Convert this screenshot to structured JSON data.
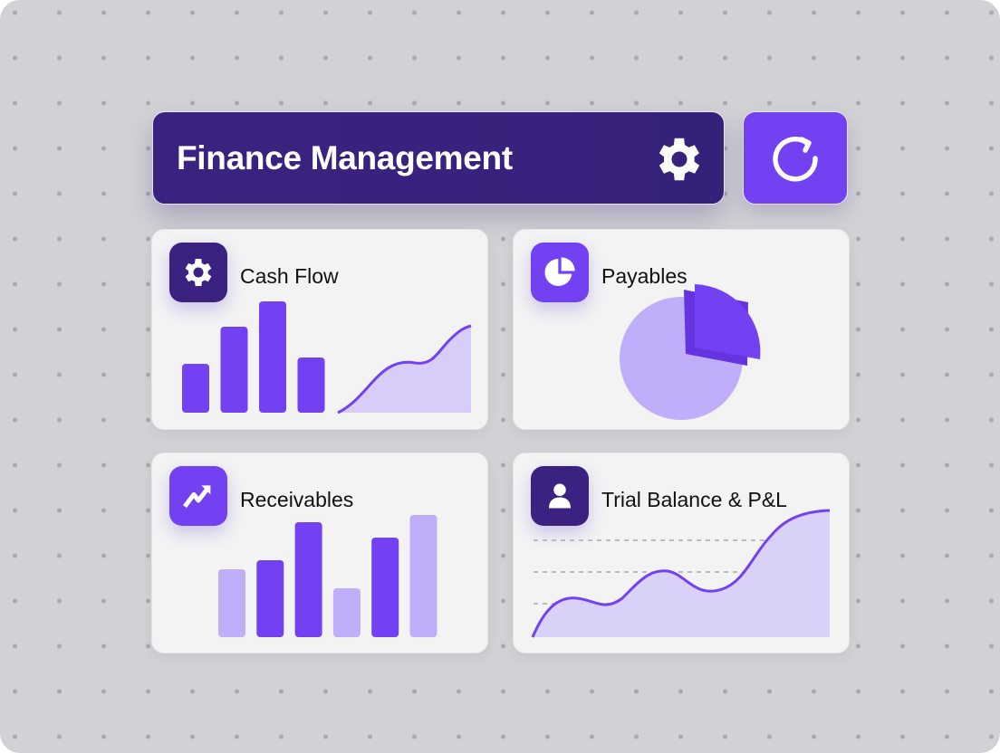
{
  "header": {
    "title": "Finance Management",
    "settings_icon": "gear-icon",
    "refresh_icon": "refresh-icon"
  },
  "colors": {
    "dark": "#3b2280",
    "accent": "#7141f2",
    "light": "#c0aefa",
    "fill": "#d7cdf8"
  },
  "cards": [
    {
      "label": "Cash Flow",
      "icon": "gear-icon",
      "bars": [
        54,
        95,
        123,
        61
      ]
    },
    {
      "label": "Payables",
      "icon": "pie-chart-icon"
    },
    {
      "label": "Receivables",
      "icon": "trend-up-icon",
      "bars": [
        75,
        85,
        127,
        54,
        110,
        135
      ]
    },
    {
      "label": "Trial Balance & P&L",
      "icon": "user-icon"
    }
  ]
}
